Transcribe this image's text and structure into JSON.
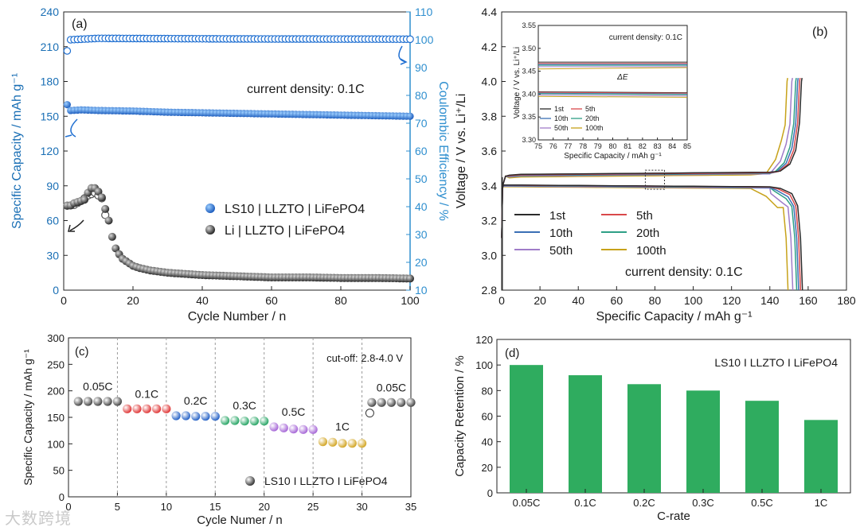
{
  "watermark": "大数跨境",
  "chart_data": [
    {
      "id": "a",
      "panel_label": "(a)",
      "type": "scatter",
      "xlabel": "Cycle Number / n",
      "ylabel_left": "Specific Capacity / mAh g⁻¹",
      "ylabel_right": "Coulombic Efficiency / %",
      "xlim": [
        0,
        100
      ],
      "ylim_left": [
        0,
        240
      ],
      "ylim_right": [
        10,
        110
      ],
      "xticks": [
        0,
        20,
        40,
        60,
        80,
        100
      ],
      "yticks_left": [
        0,
        30,
        60,
        90,
        120,
        150,
        180,
        210,
        240
      ],
      "yticks_right": [
        10,
        20,
        30,
        40,
        50,
        60,
        70,
        80,
        90,
        100,
        110
      ],
      "annotation": "current density: 0.1C",
      "colors": {
        "ls10": "#1f6fd1",
        "li": "#3a3a3a",
        "right_axis": "#2f8fcf"
      },
      "series": [
        {
          "name": "LS10 | LLZTO | LiFePO4",
          "axis": "left",
          "marker": "ball-blue",
          "points": [
            [
              1,
              160
            ],
            [
              2,
              155
            ],
            [
              5,
              155.5
            ],
            [
              10,
              155
            ],
            [
              20,
              154.5
            ],
            [
              30,
              153.5
            ],
            [
              40,
              153
            ],
            [
              50,
              152.5
            ],
            [
              60,
              152
            ],
            [
              70,
              151.5
            ],
            [
              80,
              151
            ],
            [
              90,
              150.5
            ],
            [
              100,
              150
            ]
          ]
        },
        {
          "name": "LS10 | LLZTO | LiFePO4 CE",
          "axis": "right",
          "marker": "ring-blue",
          "points": [
            [
              1,
              96
            ],
            [
              2,
              100
            ],
            [
              10,
              100.5
            ],
            [
              50,
              100.3
            ],
            [
              100,
              100.2
            ]
          ]
        },
        {
          "name": "Li | LLZTO | LiFePO4",
          "axis": "left",
          "marker": "ball-gray",
          "points": [
            [
              1,
              73
            ],
            [
              2,
              73
            ],
            [
              3,
              75
            ],
            [
              4,
              76
            ],
            [
              5,
              77
            ],
            [
              6,
              78
            ],
            [
              7,
              84
            ],
            [
              8,
              88
            ],
            [
              9,
              88
            ],
            [
              10,
              85
            ],
            [
              11,
              80
            ],
            [
              12,
              70
            ],
            [
              13,
              60
            ],
            [
              14,
              46
            ],
            [
              15,
              36
            ],
            [
              16,
              31
            ],
            [
              17,
              27
            ],
            [
              18,
              25
            ],
            [
              19,
              23
            ],
            [
              20,
              21
            ],
            [
              22,
              19
            ],
            [
              25,
              17
            ],
            [
              30,
              15
            ],
            [
              35,
              14
            ],
            [
              40,
              13
            ],
            [
              50,
              12
            ],
            [
              60,
              11
            ],
            [
              70,
              11
            ],
            [
              80,
              10.5
            ],
            [
              90,
              10.5
            ],
            [
              100,
              10
            ]
          ]
        },
        {
          "name": "Li | LLZTO | LiFePO4 CE",
          "axis": "right",
          "marker": "ring-gray",
          "points": [
            [
              1,
              40.3
            ],
            [
              3,
              40.6
            ],
            [
              5,
              42
            ],
            [
              7,
              44
            ],
            [
              9,
              45
            ],
            [
              11,
              43
            ],
            [
              12,
              37
            ]
          ]
        }
      ]
    },
    {
      "id": "b",
      "panel_label": "(b)",
      "type": "line",
      "xlabel": "Specific Capacity / mAh g⁻¹",
      "ylabel": "Voltage / V vs. Li⁺/Li",
      "xlim": [
        0,
        180
      ],
      "ylim": [
        2.8,
        4.4
      ],
      "xticks": [
        0,
        20,
        40,
        60,
        80,
        100,
        120,
        140,
        160,
        180
      ],
      "yticks": [
        2.8,
        3.0,
        3.2,
        3.4,
        3.6,
        3.8,
        4.0,
        4.2,
        4.4
      ],
      "annotation": "current density: 0.1C",
      "series": [
        {
          "name": "1st",
          "color": "#2b2b2b",
          "cap": 157.5,
          "vch": 3.465,
          "vdis": 3.405
        },
        {
          "name": "5th",
          "color": "#d9484a",
          "cap": 156.5,
          "vch": 3.462,
          "vdis": 3.404
        },
        {
          "name": "10th",
          "color": "#3a6fb5",
          "cap": 155.5,
          "vch": 3.46,
          "vdis": 3.402
        },
        {
          "name": "20th",
          "color": "#2e9f86",
          "cap": 154.5,
          "vch": 3.458,
          "vdis": 3.401
        },
        {
          "name": "50th",
          "color": "#a07cc9",
          "cap": 152.5,
          "vch": 3.455,
          "vdis": 3.398
        },
        {
          "name": "100th",
          "color": "#c7a21a",
          "cap": 150,
          "vch": 3.45,
          "vdis": 3.395
        }
      ],
      "inset": {
        "xlabel": "Specific Capacity / mAh g⁻¹",
        "ylabel": "Voltage / V vs. Li⁺/Li",
        "xlim": [
          75,
          85
        ],
        "ylim": [
          3.3,
          3.55
        ],
        "xticks": [
          75,
          76,
          77,
          78,
          79,
          80,
          81,
          82,
          83,
          84,
          85
        ],
        "yticks": [
          3.3,
          3.35,
          3.4,
          3.45,
          3.5,
          3.55
        ],
        "annotation": "current density: 0.1C",
        "delta_label": "ΔE"
      }
    },
    {
      "id": "c",
      "panel_label": "(c)",
      "type": "scatter",
      "xlabel": "Cycle Numer / n",
      "ylabel": "Specific Capacity / mAh g⁻¹",
      "xlim": [
        0,
        35
      ],
      "ylim": [
        0,
        300
      ],
      "xticks": [
        0,
        5,
        10,
        15,
        20,
        25,
        30,
        35
      ],
      "yticks": [
        0,
        50,
        100,
        150,
        200,
        250,
        300
      ],
      "annotation": "cut-off: 2.8-4.0 V",
      "legend": "LS10 I LLZTO I LiFePO4",
      "groups": [
        {
          "label": "0.05C",
          "color": "#4a4a4a",
          "x": [
            1,
            2,
            3,
            4,
            5
          ],
          "values": [
            180,
            180,
            180,
            180,
            180
          ]
        },
        {
          "label": "0.1C",
          "color": "#e03a3a",
          "x": [
            6,
            7,
            8,
            9,
            10
          ],
          "values": [
            166,
            166,
            166,
            166,
            166
          ]
        },
        {
          "label": "0.2C",
          "color": "#2b66c8",
          "x": [
            11,
            12,
            13,
            14,
            15
          ],
          "values": [
            153,
            153,
            152,
            152,
            152
          ]
        },
        {
          "label": "0.3C",
          "color": "#2ea86a",
          "x": [
            16,
            17,
            18,
            19,
            20
          ],
          "values": [
            144,
            144,
            143,
            143,
            143
          ]
        },
        {
          "label": "0.5C",
          "color": "#a86ad8",
          "x": [
            21,
            22,
            23,
            24,
            25
          ],
          "values": [
            132,
            130,
            128,
            127,
            127
          ]
        },
        {
          "label": "1C",
          "color": "#d4a82a",
          "x": [
            26,
            27,
            28,
            29,
            30
          ],
          "values": [
            104,
            103,
            101,
            101,
            101
          ]
        },
        {
          "label": "0.05C",
          "color": "#4a4a4a",
          "x": [
            31,
            32,
            33,
            34,
            35
          ],
          "values": [
            178,
            178,
            178,
            178,
            178
          ]
        }
      ],
      "outlier": [
        30.8,
        158
      ]
    },
    {
      "id": "d",
      "panel_label": "(d)",
      "type": "bar",
      "xlabel": "C-rate",
      "ylabel": "Capacity Retention / %",
      "ylim": [
        0,
        120
      ],
      "yticks": [
        0,
        20,
        40,
        60,
        80,
        100,
        120
      ],
      "legend": "LS10 I LLZTO I LiFePO4",
      "bar_color": "#2fac5f",
      "categories": [
        "0.05C",
        "0.1C",
        "0.2C",
        "0.3C",
        "0.5C",
        "1C"
      ],
      "values": [
        100,
        92,
        85,
        80,
        72,
        57
      ]
    }
  ]
}
